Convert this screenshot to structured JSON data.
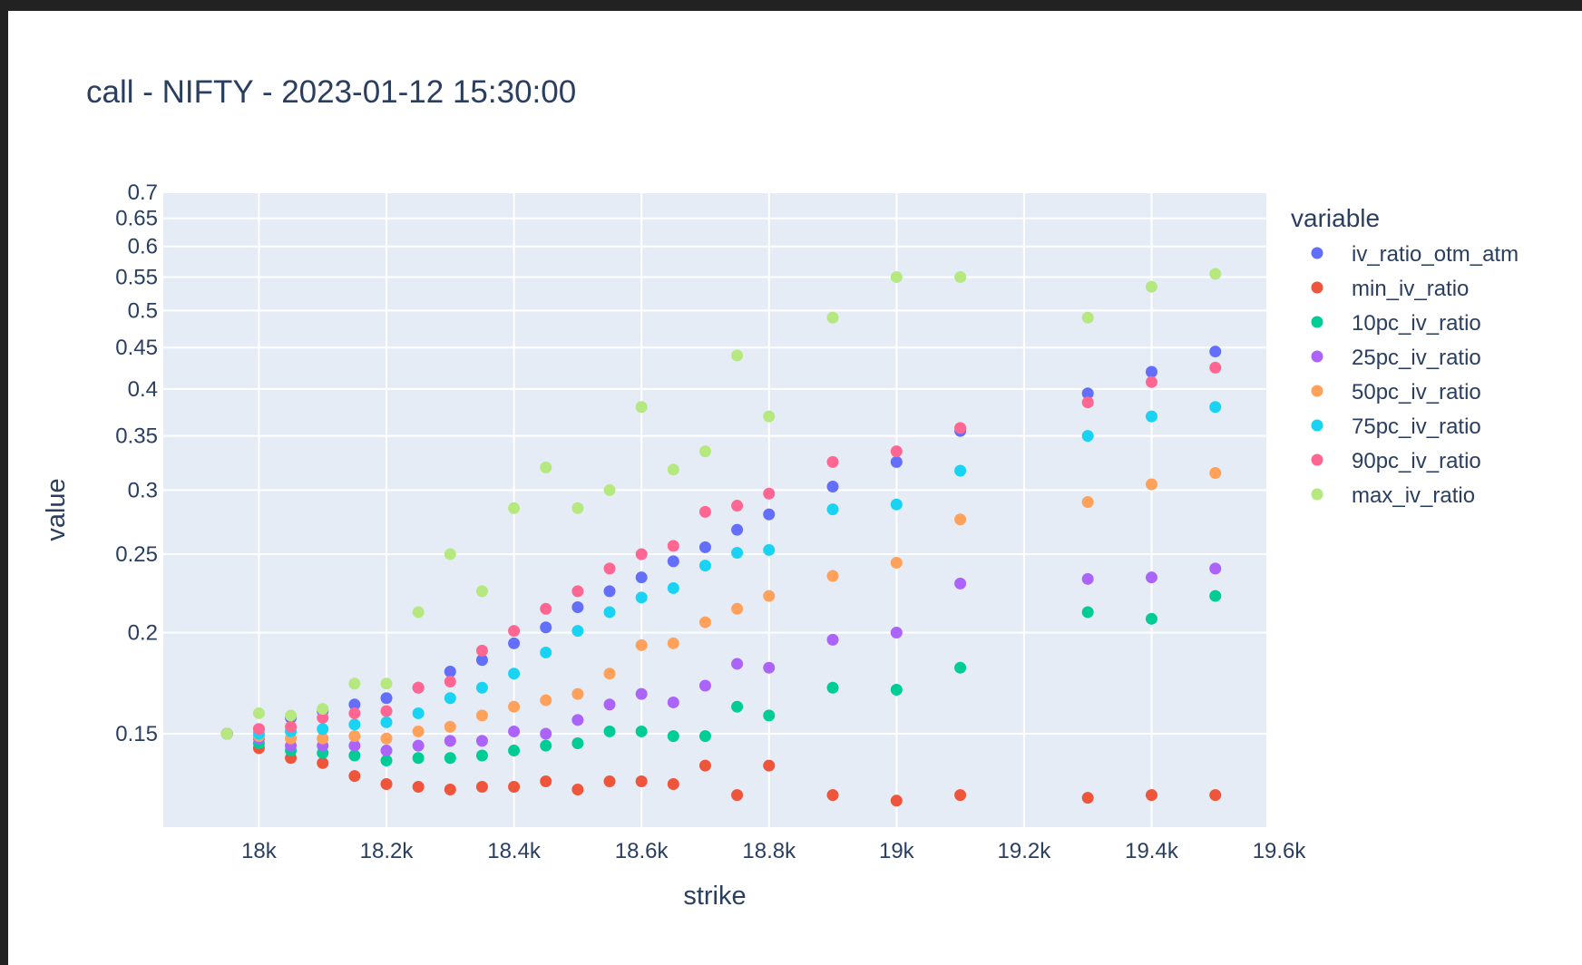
{
  "chart_data": {
    "type": "scatter",
    "title": "call - NIFTY - 2023-01-12 15:30:00",
    "xlabel": "strike",
    "ylabel": "value",
    "x_scale": "linear",
    "y_scale": "log",
    "xlim": [
      17850,
      19580
    ],
    "ylim": [
      0.115,
      0.7
    ],
    "x_ticks": [
      18000,
      18200,
      18400,
      18600,
      18800,
      19000,
      19200,
      19400,
      19600
    ],
    "x_tick_labels": [
      "18k",
      "18.2k",
      "18.4k",
      "18.6k",
      "18.8k",
      "19k",
      "19.2k",
      "19.4k",
      "19.6k"
    ],
    "y_ticks": [
      0.15,
      0.2,
      0.25,
      0.3,
      0.35,
      0.4,
      0.45,
      0.5,
      0.55,
      0.6,
      0.65,
      0.7
    ],
    "y_tick_labels": [
      "0.15",
      "0.2",
      "0.25",
      "0.3",
      "0.35",
      "0.4",
      "0.45",
      "0.5",
      "0.55",
      "0.6",
      "0.65",
      "0.7"
    ],
    "grid": true,
    "legend_title": "variable",
    "legend_position": "right",
    "series": [
      {
        "name": "iv_ratio_otm_atm",
        "color": "#636efa",
        "x": [
          17950,
          18000,
          18050,
          18100,
          18150,
          18200,
          18250,
          18300,
          18350,
          18400,
          18450,
          18500,
          18550,
          18600,
          18650,
          18700,
          18750,
          18800,
          18900,
          19000,
          19100,
          19300,
          19400,
          19500
        ],
        "y": [
          0.15,
          0.152,
          0.157,
          0.16,
          0.163,
          0.166,
          0.171,
          0.179,
          0.185,
          0.194,
          0.203,
          0.215,
          0.225,
          0.234,
          0.245,
          0.255,
          0.268,
          0.28,
          0.303,
          0.325,
          0.355,
          0.395,
          0.42,
          0.445
        ]
      },
      {
        "name": "min_iv_ratio",
        "color": "#ef553b",
        "x": [
          17950,
          18000,
          18050,
          18100,
          18150,
          18200,
          18250,
          18300,
          18350,
          18400,
          18450,
          18500,
          18550,
          18600,
          18650,
          18700,
          18750,
          18800,
          18900,
          19000,
          19100,
          19300,
          19400,
          19500
        ],
        "y": [
          0.15,
          0.144,
          0.14,
          0.138,
          0.133,
          0.13,
          0.129,
          0.128,
          0.129,
          0.129,
          0.131,
          0.128,
          0.131,
          0.131,
          0.13,
          0.137,
          0.126,
          0.137,
          0.126,
          0.124,
          0.126,
          0.125,
          0.126,
          0.126
        ]
      },
      {
        "name": "10pc_iv_ratio",
        "color": "#00cc96",
        "x": [
          17950,
          18000,
          18050,
          18100,
          18150,
          18200,
          18250,
          18300,
          18350,
          18400,
          18450,
          18500,
          18550,
          18600,
          18650,
          18700,
          18750,
          18800,
          18900,
          19000,
          19100,
          19300,
          19400,
          19500
        ],
        "y": [
          0.15,
          0.146,
          0.143,
          0.142,
          0.141,
          0.139,
          0.14,
          0.14,
          0.141,
          0.143,
          0.145,
          0.146,
          0.151,
          0.151,
          0.149,
          0.149,
          0.162,
          0.158,
          0.171,
          0.17,
          0.181,
          0.212,
          0.208,
          0.222
        ]
      },
      {
        "name": "25pc_iv_ratio",
        "color": "#ab63fa",
        "x": [
          17950,
          18000,
          18050,
          18100,
          18150,
          18200,
          18250,
          18300,
          18350,
          18400,
          18450,
          18500,
          18550,
          18600,
          18650,
          18700,
          18750,
          18800,
          18900,
          19000,
          19100,
          19300,
          19400,
          19500
        ],
        "y": [
          0.15,
          0.148,
          0.145,
          0.145,
          0.145,
          0.143,
          0.145,
          0.147,
          0.147,
          0.151,
          0.15,
          0.156,
          0.163,
          0.168,
          0.164,
          0.172,
          0.183,
          0.181,
          0.196,
          0.2,
          0.23,
          0.233,
          0.234,
          0.24
        ]
      },
      {
        "name": "50pc_iv_ratio",
        "color": "#ffa15a",
        "x": [
          17950,
          18000,
          18050,
          18100,
          18150,
          18200,
          18250,
          18300,
          18350,
          18400,
          18450,
          18500,
          18550,
          18600,
          18650,
          18700,
          18750,
          18800,
          18900,
          19000,
          19100,
          19300,
          19400,
          19500
        ],
        "y": [
          0.15,
          0.149,
          0.148,
          0.148,
          0.149,
          0.148,
          0.151,
          0.153,
          0.158,
          0.162,
          0.165,
          0.168,
          0.178,
          0.193,
          0.194,
          0.206,
          0.214,
          0.222,
          0.235,
          0.244,
          0.276,
          0.29,
          0.305,
          0.315
        ]
      },
      {
        "name": "75pc_iv_ratio",
        "color": "#19d3f3",
        "x": [
          17950,
          18000,
          18050,
          18100,
          18150,
          18200,
          18250,
          18300,
          18350,
          18400,
          18450,
          18500,
          18550,
          18600,
          18650,
          18700,
          18750,
          18800,
          18900,
          19000,
          19100,
          19300,
          19400,
          19500
        ],
        "y": [
          0.15,
          0.15,
          0.151,
          0.152,
          0.154,
          0.155,
          0.159,
          0.166,
          0.171,
          0.178,
          0.189,
          0.201,
          0.212,
          0.221,
          0.227,
          0.242,
          0.251,
          0.253,
          0.284,
          0.288,
          0.317,
          0.35,
          0.37,
          0.38
        ]
      },
      {
        "name": "90pc_iv_ratio",
        "color": "#ff6692",
        "x": [
          17950,
          18000,
          18050,
          18100,
          18150,
          18200,
          18250,
          18300,
          18350,
          18400,
          18450,
          18500,
          18550,
          18600,
          18650,
          18700,
          18750,
          18800,
          18900,
          19000,
          19100,
          19300,
          19400,
          19500
        ],
        "y": [
          0.15,
          0.152,
          0.153,
          0.157,
          0.159,
          0.16,
          0.171,
          0.174,
          0.19,
          0.201,
          0.214,
          0.225,
          0.24,
          0.25,
          0.256,
          0.282,
          0.287,
          0.297,
          0.325,
          0.335,
          0.358,
          0.385,
          0.408,
          0.425
        ]
      },
      {
        "name": "max_iv_ratio",
        "color": "#b6e880",
        "x": [
          17950,
          18000,
          18050,
          18100,
          18150,
          18200,
          18250,
          18300,
          18350,
          18400,
          18450,
          18500,
          18550,
          18600,
          18650,
          18700,
          18750,
          18800,
          18900,
          19000,
          19100,
          19300,
          19400,
          19500
        ],
        "y": [
          0.15,
          0.159,
          0.158,
          0.161,
          0.173,
          0.173,
          0.212,
          0.25,
          0.225,
          0.285,
          0.32,
          0.285,
          0.3,
          0.38,
          0.318,
          0.335,
          0.44,
          0.37,
          0.49,
          0.55,
          0.55,
          0.49,
          0.535,
          0.555
        ]
      }
    ]
  }
}
